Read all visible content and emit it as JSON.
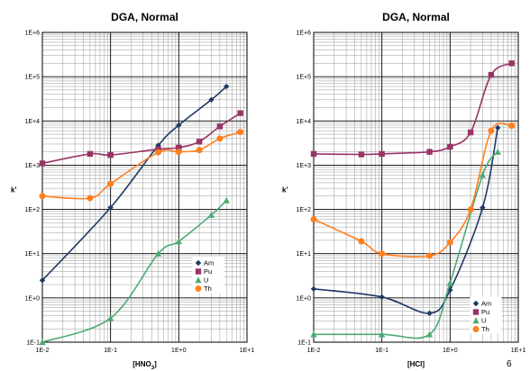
{
  "page_number": "6",
  "chart_data": [
    {
      "type": "line",
      "title": "DGA, Normal",
      "xlabel": "[HNO",
      "xlabel_sub": "3",
      "xlabel_end": "]",
      "ylabel": "k'",
      "xscale": "log",
      "yscale": "log",
      "xlim": [
        0.01,
        10
      ],
      "ylim": [
        0.1,
        1000000
      ],
      "x_ticks": [
        "1E-2",
        "1E-1",
        "1E+0",
        "1E+1"
      ],
      "y_ticks": [
        "1E-1",
        "1E+0",
        "1E+1",
        "1E+2",
        "1E+3",
        "1E+4",
        "1E+5",
        "1E+6"
      ],
      "grid": true,
      "legend_position": "right-middle",
      "series": [
        {
          "name": "Am",
          "color": "#1f3864",
          "marker": "diamond",
          "x": [
            0.01,
            0.1,
            0.5,
            1,
            3,
            5
          ],
          "y": [
            2.5,
            110,
            2800,
            8000,
            30000,
            60000
          ]
        },
        {
          "name": "Pu",
          "color": "#993366",
          "marker": "square",
          "x": [
            0.01,
            0.05,
            0.1,
            0.5,
            1,
            2,
            4,
            8
          ],
          "y": [
            1100,
            1800,
            1700,
            2300,
            2500,
            3400,
            7500,
            15000
          ]
        },
        {
          "name": "U",
          "color": "#4daa74",
          "marker": "triangle",
          "x": [
            0.01,
            0.1,
            0.5,
            1,
            3,
            5
          ],
          "y": [
            0.1,
            0.35,
            10,
            19,
            75,
            160
          ]
        },
        {
          "name": "Th",
          "color": "#ff7f1e",
          "marker": "circle",
          "x": [
            0.01,
            0.05,
            0.1,
            0.5,
            1,
            2,
            4,
            8
          ],
          "y": [
            200,
            180,
            380,
            1950,
            2000,
            2200,
            4000,
            5600
          ]
        }
      ]
    },
    {
      "type": "line",
      "title": "DGA, Normal",
      "xlabel": "[HCl]",
      "ylabel": "k'",
      "xscale": "log",
      "yscale": "log",
      "xlim": [
        0.01,
        10
      ],
      "ylim": [
        0.1,
        1000000
      ],
      "x_ticks": [
        "1E-2",
        "1E-1",
        "1E+0",
        "1E+1"
      ],
      "y_ticks": [
        "1E-1",
        "1E+0",
        "1E+1",
        "1E+2",
        "1E+3",
        "1E+4",
        "1E+5",
        "1E+6"
      ],
      "grid": true,
      "legend_position": "bottom-right",
      "series": [
        {
          "name": "Am",
          "color": "#1f3864",
          "marker": "diamond",
          "x": [
            0.01,
            0.1,
            0.5,
            1,
            3,
            5
          ],
          "y": [
            1.6,
            1.05,
            0.45,
            1.5,
            110,
            7000
          ]
        },
        {
          "name": "Pu",
          "color": "#993366",
          "marker": "square",
          "x": [
            0.01,
            0.05,
            0.1,
            0.5,
            1,
            2,
            4,
            8
          ],
          "y": [
            1800,
            1750,
            1800,
            2000,
            2600,
            5500,
            110000,
            200000
          ]
        },
        {
          "name": "U",
          "color": "#4daa74",
          "marker": "triangle",
          "x": [
            0.01,
            0.1,
            0.5,
            1,
            3,
            5
          ],
          "y": [
            0.15,
            0.15,
            0.15,
            2.2,
            600,
            2000
          ]
        },
        {
          "name": "Th",
          "color": "#ff7f1e",
          "marker": "circle",
          "x": [
            0.01,
            0.05,
            0.1,
            0.5,
            1,
            2,
            4,
            8
          ],
          "y": [
            60,
            19,
            10,
            9,
            18,
            100,
            6000,
            7800
          ]
        }
      ]
    }
  ]
}
